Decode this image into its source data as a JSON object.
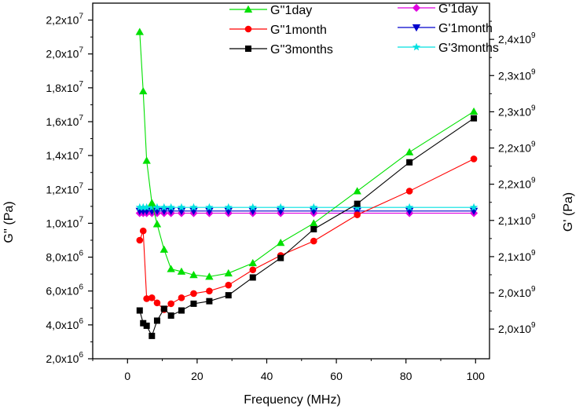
{
  "chart_data": {
    "type": "line",
    "title": "",
    "xlabel": "Frequency (MHz)",
    "ylabel_left": "G'' (Pa)",
    "ylabel_right": "G' (Pa)",
    "xlim": [
      -10,
      104
    ],
    "ylim_left": [
      2000000,
      23000000
    ],
    "ylim_right": [
      1939000000,
      2430000000
    ],
    "x_ticks": [
      {
        "value": 0,
        "label": "0"
      },
      {
        "value": 20,
        "label": "20"
      },
      {
        "value": 40,
        "label": "40"
      },
      {
        "value": 60,
        "label": "60"
      },
      {
        "value": 80,
        "label": "80"
      },
      {
        "value": 100,
        "label": "100"
      }
    ],
    "y_left_ticks": [
      {
        "value": 2000000,
        "mantissa": "2,0x10",
        "exp": "6"
      },
      {
        "value": 4000000,
        "mantissa": "4,0x10",
        "exp": "6"
      },
      {
        "value": 6000000,
        "mantissa": "6,0x10",
        "exp": "6"
      },
      {
        "value": 8000000,
        "mantissa": "8,0x10",
        "exp": "6"
      },
      {
        "value": 10000000,
        "mantissa": "1,0x10",
        "exp": "7"
      },
      {
        "value": 12000000,
        "mantissa": "1,2x10",
        "exp": "7"
      },
      {
        "value": 14000000,
        "mantissa": "1,4x10",
        "exp": "7"
      },
      {
        "value": 16000000,
        "mantissa": "1,6x10",
        "exp": "7"
      },
      {
        "value": 18000000,
        "mantissa": "1,8x10",
        "exp": "7"
      },
      {
        "value": 20000000,
        "mantissa": "2,0x10",
        "exp": "7"
      },
      {
        "value": 22000000,
        "mantissa": "2,2x10",
        "exp": "7"
      }
    ],
    "y_right_ticks": [
      {
        "value": 1980000000,
        "mantissa": "2,0x10",
        "exp": "9"
      },
      {
        "value": 2030000000,
        "mantissa": "2,0x10",
        "exp": "9"
      },
      {
        "value": 2080000000,
        "mantissa": "2,1x10",
        "exp": "9"
      },
      {
        "value": 2130000000,
        "mantissa": "2,1x10",
        "exp": "9"
      },
      {
        "value": 2180000000,
        "mantissa": "2,2x10",
        "exp": "9"
      },
      {
        "value": 2230000000,
        "mantissa": "2,2x10",
        "exp": "9"
      },
      {
        "value": 2280000000,
        "mantissa": "2,3x10",
        "exp": "9"
      },
      {
        "value": 2330000000,
        "mantissa": "2,3x10",
        "exp": "9"
      },
      {
        "value": 2380000000,
        "mantissa": "2,4x10",
        "exp": "9"
      }
    ],
    "x": [
      3.5,
      4.5,
      5.5,
      7,
      8.5,
      10.5,
      12.5,
      15.5,
      19,
      23.5,
      29,
      36,
      44,
      53.5,
      66,
      81,
      99.5
    ],
    "series": [
      {
        "name": "G''1day",
        "axis": "left",
        "color": "#00e000",
        "marker": "triangle-up",
        "values": [
          21300000,
          17800000,
          13700000,
          11200000,
          9950000,
          8450000,
          7300000,
          7150000,
          6950000,
          6850000,
          7050000,
          7650000,
          8850000,
          10000000,
          11900000,
          14200000,
          16600000
        ]
      },
      {
        "name": "G''1month",
        "axis": "left",
        "color": "#ff0000",
        "marker": "circle",
        "values": [
          9000000,
          9550000,
          5550000,
          5600000,
          5300000,
          4900000,
          5250000,
          5600000,
          5850000,
          6000000,
          6350000,
          7250000,
          8100000,
          8950000,
          10500000,
          11900000,
          13800000
        ]
      },
      {
        "name": "G''3months",
        "axis": "left",
        "color": "#000000",
        "marker": "square",
        "values": [
          4850000,
          4100000,
          3950000,
          3350000,
          4250000,
          4950000,
          4550000,
          4850000,
          5250000,
          5400000,
          5750000,
          6800000,
          7950000,
          9650000,
          11150000,
          13600000,
          16200000
        ]
      },
      {
        "name": "G'1day",
        "axis": "right",
        "color": "#e000e0",
        "marker": "diamond",
        "values": [
          2140000000,
          2140000000,
          2140000000,
          2140000000,
          2140000000,
          2140000000,
          2140000000,
          2140000000,
          2140000000,
          2140000000,
          2140000000,
          2140000000,
          2140000000,
          2140000000,
          2140000000,
          2140000000,
          2140000000
        ]
      },
      {
        "name": "G'1month",
        "axis": "right",
        "color": "#0000cc",
        "marker": "triangle-down",
        "values": [
          2143000000,
          2143000000,
          2143000000,
          2143000000,
          2143000000,
          2143000000,
          2143000000,
          2143000000,
          2143000000,
          2143000000,
          2143000000,
          2143000000,
          2143000000,
          2143000000,
          2143000000,
          2143000000,
          2143000000
        ]
      },
      {
        "name": "G'3months",
        "axis": "right",
        "color": "#00e0e0",
        "marker": "star",
        "values": [
          2148000000,
          2148000000,
          2148000000,
          2148000000,
          2148000000,
          2148000000,
          2148000000,
          2148000000,
          2148000000,
          2148000000,
          2148000000,
          2148000000,
          2148000000,
          2148000000,
          2148000000,
          2148000000,
          2148000000
        ]
      }
    ],
    "legend_placement": "top-center, two columns"
  }
}
